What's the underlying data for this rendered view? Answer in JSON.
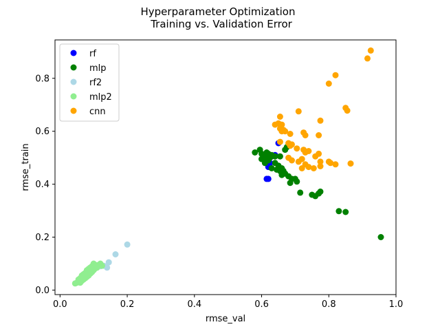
{
  "chart_data": {
    "type": "scatter",
    "title": "Hyperparameter Optimization",
    "subtitle": "Training vs. Validation Error",
    "xlabel": "rmse_val",
    "ylabel": "rmse_train",
    "xlim": [
      -0.015,
      1.0
    ],
    "ylim": [
      -0.017,
      0.945
    ],
    "xticks": [
      "0.0",
      "0.2",
      "0.4",
      "0.6",
      "0.8",
      "1.0"
    ],
    "yticks": [
      "0.0",
      "0.2",
      "0.4",
      "0.6",
      "0.8"
    ],
    "grid": false,
    "legend_position": "top-left",
    "series": [
      {
        "name": "rf",
        "color": "#0000ff",
        "points": [
          [
            0.65,
            0.555
          ],
          [
            0.64,
            0.51
          ],
          [
            0.63,
            0.505
          ],
          [
            0.625,
            0.48
          ],
          [
            0.62,
            0.465
          ],
          [
            0.625,
            0.465
          ],
          [
            0.615,
            0.42
          ],
          [
            0.62,
            0.42
          ]
        ]
      },
      {
        "name": "mlp",
        "color": "#008000",
        "points": [
          [
            0.58,
            0.52
          ],
          [
            0.595,
            0.53
          ],
          [
            0.6,
            0.515
          ],
          [
            0.605,
            0.505
          ],
          [
            0.61,
            0.51
          ],
          [
            0.615,
            0.52
          ],
          [
            0.62,
            0.515
          ],
          [
            0.6,
            0.495
          ],
          [
            0.61,
            0.5
          ],
          [
            0.62,
            0.49
          ],
          [
            0.625,
            0.5
          ],
          [
            0.63,
            0.51
          ],
          [
            0.64,
            0.505
          ],
          [
            0.61,
            0.48
          ],
          [
            0.64,
            0.48
          ],
          [
            0.655,
            0.505
          ],
          [
            0.67,
            0.53
          ],
          [
            0.675,
            0.54
          ],
          [
            0.66,
            0.46
          ],
          [
            0.665,
            0.45
          ],
          [
            0.67,
            0.44
          ],
          [
            0.68,
            0.43
          ],
          [
            0.69,
            0.42
          ],
          [
            0.7,
            0.42
          ],
          [
            0.705,
            0.41
          ],
          [
            0.685,
            0.405
          ],
          [
            0.655,
            0.45
          ],
          [
            0.66,
            0.435
          ],
          [
            0.63,
            0.46
          ],
          [
            0.645,
            0.455
          ],
          [
            0.65,
            0.47
          ],
          [
            0.715,
            0.368
          ],
          [
            0.75,
            0.36
          ],
          [
            0.76,
            0.355
          ],
          [
            0.77,
            0.365
          ],
          [
            0.775,
            0.372
          ],
          [
            0.83,
            0.298
          ],
          [
            0.85,
            0.295
          ],
          [
            0.955,
            0.2
          ]
        ]
      },
      {
        "name": "rf2",
        "color": "#add8e6",
        "points": [
          [
            0.2,
            0.172
          ],
          [
            0.165,
            0.135
          ],
          [
            0.145,
            0.105
          ],
          [
            0.14,
            0.085
          ],
          [
            0.13,
            0.092
          ],
          [
            0.12,
            0.09
          ],
          [
            0.11,
            0.085
          ],
          [
            0.1,
            0.078
          ],
          [
            0.09,
            0.07
          ],
          [
            0.08,
            0.062
          ],
          [
            0.07,
            0.048
          ],
          [
            0.06,
            0.035
          ]
        ]
      },
      {
        "name": "mlp2",
        "color": "#90ee90",
        "points": [
          [
            0.045,
            0.025
          ],
          [
            0.05,
            0.028
          ],
          [
            0.055,
            0.03
          ],
          [
            0.06,
            0.028
          ],
          [
            0.065,
            0.035
          ],
          [
            0.07,
            0.04
          ],
          [
            0.075,
            0.045
          ],
          [
            0.08,
            0.05
          ],
          [
            0.085,
            0.055
          ],
          [
            0.09,
            0.062
          ],
          [
            0.095,
            0.068
          ],
          [
            0.1,
            0.075
          ],
          [
            0.105,
            0.082
          ],
          [
            0.11,
            0.09
          ],
          [
            0.115,
            0.095
          ],
          [
            0.12,
            0.1
          ],
          [
            0.1,
            0.1
          ],
          [
            0.105,
            0.095
          ],
          [
            0.08,
            0.075
          ],
          [
            0.09,
            0.085
          ],
          [
            0.07,
            0.06
          ],
          [
            0.065,
            0.055
          ],
          [
            0.075,
            0.065
          ],
          [
            0.085,
            0.08
          ],
          [
            0.06,
            0.045
          ],
          [
            0.095,
            0.09
          ],
          [
            0.11,
            0.085
          ],
          [
            0.125,
            0.092
          ],
          [
            0.055,
            0.04
          ],
          [
            0.1,
            0.088
          ]
        ]
      },
      {
        "name": "cnn",
        "color": "#ffa500",
        "points": [
          [
            0.925,
            0.905
          ],
          [
            0.915,
            0.875
          ],
          [
            0.82,
            0.812
          ],
          [
            0.8,
            0.78
          ],
          [
            0.85,
            0.688
          ],
          [
            0.855,
            0.678
          ],
          [
            0.71,
            0.675
          ],
          [
            0.655,
            0.655
          ],
          [
            0.65,
            0.63
          ],
          [
            0.64,
            0.625
          ],
          [
            0.66,
            0.625
          ],
          [
            0.655,
            0.61
          ],
          [
            0.66,
            0.6
          ],
          [
            0.665,
            0.605
          ],
          [
            0.67,
            0.6
          ],
          [
            0.685,
            0.59
          ],
          [
            0.775,
            0.64
          ],
          [
            0.725,
            0.595
          ],
          [
            0.73,
            0.585
          ],
          [
            0.77,
            0.585
          ],
          [
            0.655,
            0.56
          ],
          [
            0.68,
            0.555
          ],
          [
            0.685,
            0.545
          ],
          [
            0.69,
            0.55
          ],
          [
            0.705,
            0.535
          ],
          [
            0.725,
            0.53
          ],
          [
            0.74,
            0.525
          ],
          [
            0.77,
            0.515
          ],
          [
            0.68,
            0.5
          ],
          [
            0.69,
            0.49
          ],
          [
            0.72,
            0.495
          ],
          [
            0.76,
            0.505
          ],
          [
            0.73,
            0.475
          ],
          [
            0.74,
            0.465
          ],
          [
            0.755,
            0.46
          ],
          [
            0.775,
            0.485
          ],
          [
            0.775,
            0.468
          ],
          [
            0.8,
            0.485
          ],
          [
            0.805,
            0.48
          ],
          [
            0.82,
            0.475
          ],
          [
            0.865,
            0.478
          ],
          [
            0.72,
            0.46
          ],
          [
            0.71,
            0.485
          ],
          [
            0.73,
            0.52
          ]
        ]
      }
    ]
  }
}
